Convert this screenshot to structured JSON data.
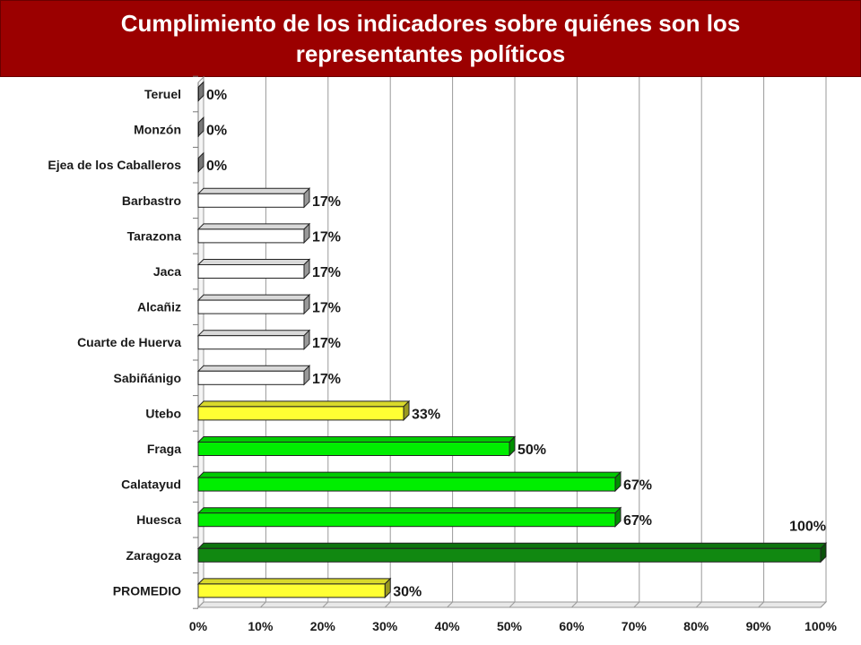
{
  "title": "Cumplimiento de los indicadores sobre quiénes son los representantes políticos",
  "colors": {
    "title_bg": "#9b0000",
    "gray": "#c8c8c8",
    "white": "#ffffff",
    "yellow": "#ffff33",
    "green": "#00ee00",
    "dark_green": "#118811"
  },
  "chart_data": {
    "type": "bar",
    "orientation": "horizontal",
    "title": "Cumplimiento de los indicadores sobre quiénes son los representantes políticos",
    "xlabel": "",
    "ylabel": "",
    "categories": [
      "Teruel",
      "Monzón",
      "Ejea de los Caballeros",
      "Barbastro",
      "Tarazona",
      "Jaca",
      "Alcañiz",
      "Cuarte de Huerva",
      "Sabiñánigo",
      "Utebo",
      "Fraga",
      "Calatayud",
      "Huesca",
      "Zaragoza",
      "PROMEDIO"
    ],
    "values": [
      0,
      0,
      0,
      17,
      17,
      17,
      17,
      17,
      17,
      33,
      50,
      67,
      67,
      100,
      30
    ],
    "value_labels": [
      "0%",
      "0%",
      "0%",
      "17%",
      "17%",
      "17%",
      "17%",
      "17%",
      "17%",
      "33%",
      "50%",
      "67%",
      "67%",
      "100%",
      "30%"
    ],
    "bar_colors": [
      "#c8c8c8",
      "#c8c8c8",
      "#c8c8c8",
      "#ffffff",
      "#ffffff",
      "#ffffff",
      "#ffffff",
      "#ffffff",
      "#ffffff",
      "#ffff33",
      "#00ee00",
      "#00ee00",
      "#00ee00",
      "#118811",
      "#ffff33"
    ],
    "xlim": [
      0,
      100
    ],
    "xticks": [
      0,
      10,
      20,
      30,
      40,
      50,
      60,
      70,
      80,
      90,
      100
    ],
    "xtick_labels": [
      "0%",
      "10%",
      "20%",
      "30%",
      "40%",
      "50%",
      "60%",
      "70%",
      "80%",
      "90%",
      "100%"
    ],
    "grid": true,
    "legend": "none",
    "style": "3d"
  }
}
